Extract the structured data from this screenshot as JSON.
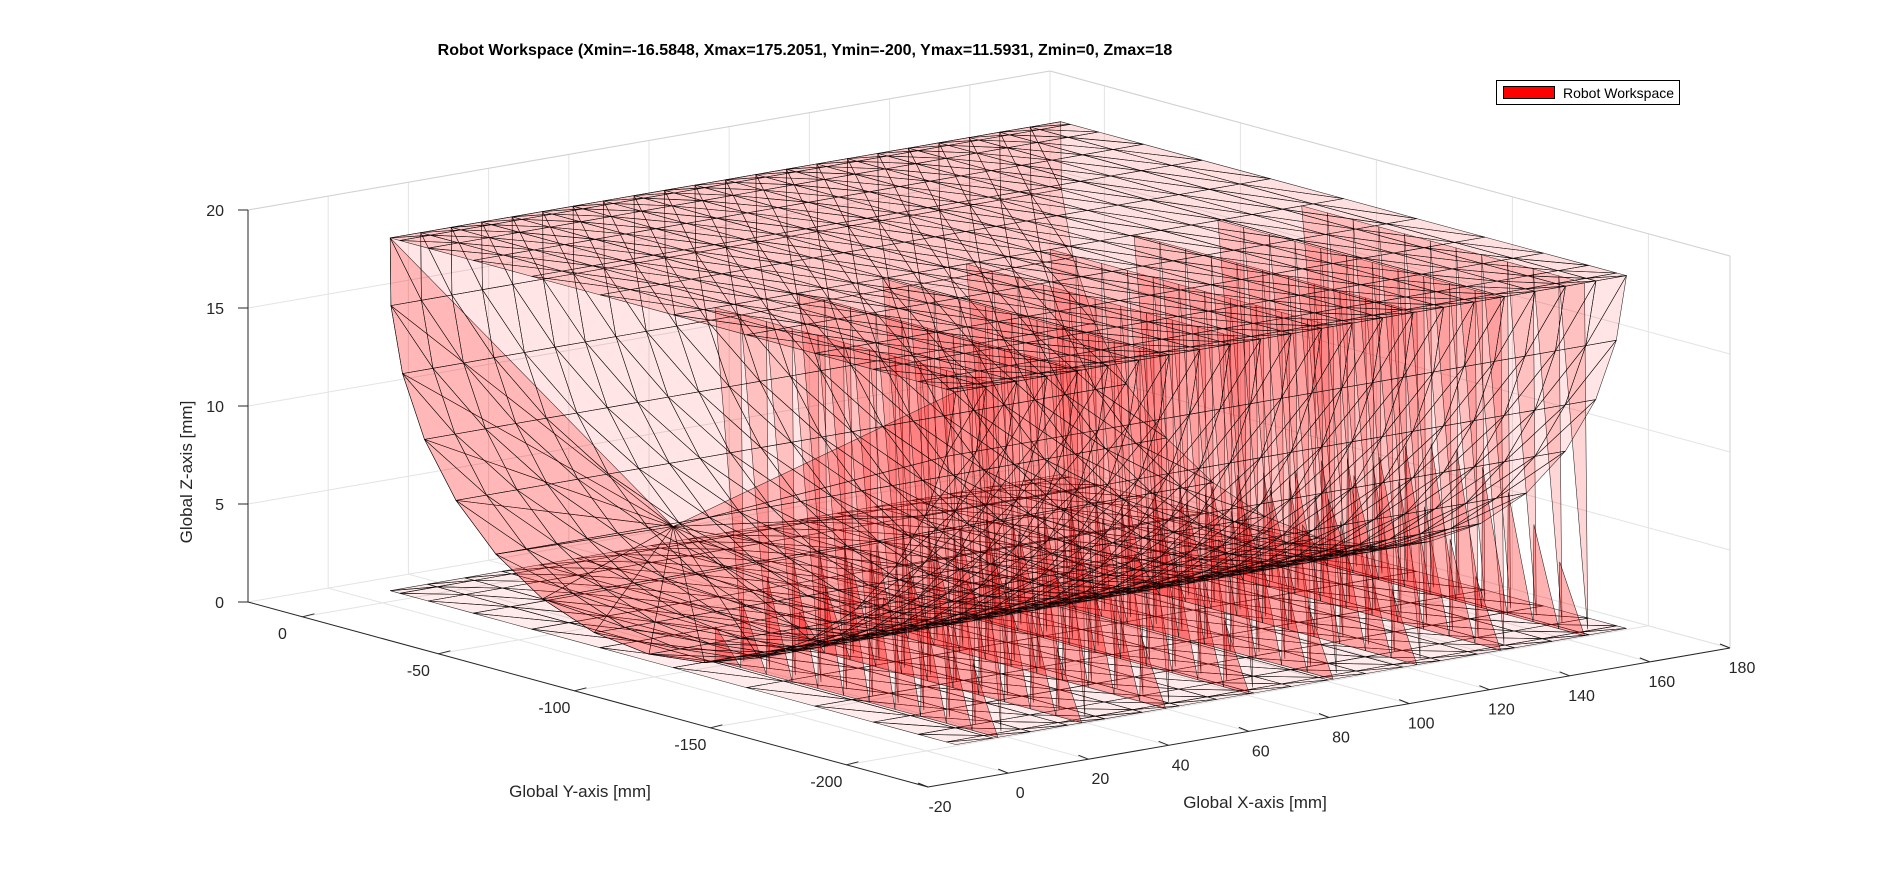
{
  "chart_data": {
    "type": "mesh3d",
    "title": "Robot Workspace (Xmin=-16.5848, Xmax=175.2051, Ymin=-200, Ymax=11.5931, Zmin=0, Zmax=18",
    "xlabel": "Global X-axis [mm]",
    "ylabel": "Global Y-axis [mm]",
    "zlabel": "Global Z-axis [mm]",
    "xlim": [
      -20,
      180
    ],
    "ylim": [
      -230,
      20
    ],
    "zlim": [
      0,
      20
    ],
    "x_ticks": [
      "-20",
      "0",
      "20",
      "40",
      "60",
      "80",
      "100",
      "120",
      "140",
      "160",
      "180"
    ],
    "y_ticks": [
      "0",
      "-50",
      "-100",
      "-150",
      "-200"
    ],
    "z_ticks": [
      "0",
      "5",
      "10",
      "15",
      "20"
    ],
    "x_tick_values": [
      -20,
      0,
      20,
      40,
      60,
      80,
      100,
      120,
      140,
      160,
      180
    ],
    "y_tick_values": [
      0,
      -50,
      -100,
      -150,
      -200
    ],
    "z_tick_values": [
      0,
      5,
      10,
      15,
      20
    ],
    "grid": true,
    "legend": {
      "position": "top-right",
      "entries": [
        {
          "label": "Robot Workspace",
          "color": "#ff0000"
        }
      ]
    },
    "series": [
      {
        "name": "Robot Workspace",
        "face_color": "#ff0000",
        "face_alpha": 0.2,
        "edge_color": "#000000",
        "bounds": {
          "xmin": -16.5848,
          "xmax": 175.2051,
          "ymin": -200,
          "ymax": 11.5931,
          "zmin": 0,
          "zmax": 18
        }
      }
    ]
  }
}
